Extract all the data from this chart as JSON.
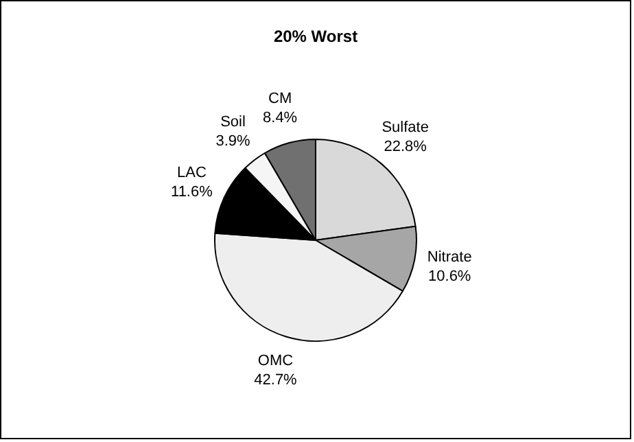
{
  "chart_data": {
    "type": "pie",
    "title": "20% Worst",
    "categories": [
      "Sulfate",
      "Nitrate",
      "OMC",
      "LAC",
      "Soil",
      "CM"
    ],
    "values": [
      22.8,
      10.6,
      42.7,
      11.6,
      3.9,
      8.4
    ],
    "value_labels": [
      "22.8%",
      "10.6%",
      "42.7%",
      "11.6%",
      "3.9%",
      "8.4%"
    ],
    "colors": [
      "#d9d9d9",
      "#a6a6a6",
      "#eeeeee",
      "#000000",
      "#f5f5f5",
      "#707070"
    ],
    "legend": false
  }
}
